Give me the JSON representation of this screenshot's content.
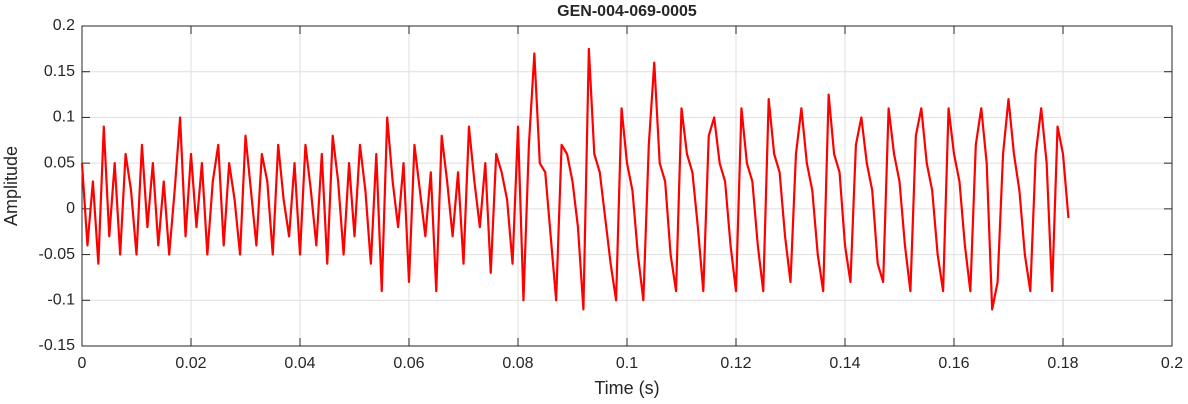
{
  "chart_data": {
    "type": "line",
    "title": "GEN-004-069-0005",
    "x_label": "Time (s)",
    "y_label": "Amplitude",
    "x": [
      0,
      0.001,
      0.002,
      0.003,
      0.004,
      0.005,
      0.006,
      0.007,
      0.008,
      0.009,
      0.01,
      0.011,
      0.012,
      0.013,
      0.014,
      0.015,
      0.016,
      0.017,
      0.018,
      0.019,
      0.02,
      0.021,
      0.022,
      0.023,
      0.024,
      0.025,
      0.026,
      0.027,
      0.028,
      0.029,
      0.03,
      0.031,
      0.032,
      0.033,
      0.034,
      0.035,
      0.036,
      0.037,
      0.038,
      0.039,
      0.04,
      0.041,
      0.042,
      0.043,
      0.044,
      0.045,
      0.046,
      0.047,
      0.048,
      0.049,
      0.05,
      0.051,
      0.052,
      0.053,
      0.054,
      0.055,
      0.056,
      0.057,
      0.058,
      0.059,
      0.06,
      0.061,
      0.062,
      0.063,
      0.064,
      0.065,
      0.066,
      0.067,
      0.068,
      0.069,
      0.07,
      0.071,
      0.072,
      0.073,
      0.074,
      0.075,
      0.076,
      0.077,
      0.078,
      0.079,
      0.08,
      0.081,
      0.082,
      0.083,
      0.084,
      0.085,
      0.086,
      0.087,
      0.088,
      0.089,
      0.09,
      0.091,
      0.092,
      0.093,
      0.094,
      0.095,
      0.096,
      0.097,
      0.098,
      0.099,
      0.1,
      0.101,
      0.102,
      0.103,
      0.104,
      0.105,
      0.106,
      0.107,
      0.108,
      0.109,
      0.11,
      0.111,
      0.112,
      0.113,
      0.114,
      0.115,
      0.116,
      0.117,
      0.118,
      0.119,
      0.12,
      0.121,
      0.122,
      0.123,
      0.124,
      0.125,
      0.126,
      0.127,
      0.128,
      0.129,
      0.13,
      0.131,
      0.132,
      0.133,
      0.134,
      0.135,
      0.136,
      0.137,
      0.138,
      0.139,
      0.14,
      0.141,
      0.142,
      0.143,
      0.144,
      0.145,
      0.146,
      0.147,
      0.148,
      0.149,
      0.15,
      0.151,
      0.152,
      0.153,
      0.154,
      0.155,
      0.156,
      0.157,
      0.158,
      0.159,
      0.16,
      0.161,
      0.162,
      0.163,
      0.164,
      0.165,
      0.166,
      0.167,
      0.168,
      0.169,
      0.17,
      0.171,
      0.172,
      0.173,
      0.174,
      0.175,
      0.176,
      0.177,
      0.178,
      0.179,
      0.18,
      0.181
    ],
    "series": [
      {
        "color": "#ff0000",
        "values": [
          0.05,
          -0.04,
          0.03,
          -0.06,
          0.09,
          -0.03,
          0.05,
          -0.05,
          0.06,
          0.02,
          -0.05,
          0.07,
          -0.02,
          0.05,
          -0.04,
          0.03,
          -0.05,
          0.02,
          0.1,
          -0.03,
          0.06,
          -0.02,
          0.05,
          -0.05,
          0.03,
          0.07,
          -0.04,
          0.05,
          0.01,
          -0.05,
          0.08,
          0.02,
          -0.04,
          0.06,
          0.03,
          -0.05,
          0.07,
          0.01,
          -0.03,
          0.05,
          -0.05,
          0.07,
          0.02,
          -0.04,
          0.06,
          -0.06,
          0.08,
          0.03,
          -0.05,
          0.05,
          -0.03,
          0.07,
          0.02,
          -0.06,
          0.06,
          -0.09,
          0.1,
          0.03,
          -0.02,
          0.05,
          -0.08,
          0.07,
          0.02,
          -0.03,
          0.04,
          -0.09,
          0.08,
          0.03,
          -0.03,
          0.04,
          -0.06,
          0.09,
          0.03,
          -0.02,
          0.05,
          -0.07,
          0.06,
          0.04,
          0.01,
          -0.06,
          0.09,
          -0.1,
          0.07,
          0.17,
          0.05,
          0.04,
          -0.03,
          -0.1,
          0.07,
          0.06,
          0.03,
          -0.02,
          -0.11,
          0.175,
          0.06,
          0.04,
          -0.01,
          -0.06,
          -0.1,
          0.11,
          0.05,
          0.02,
          -0.05,
          -0.1,
          0.07,
          0.16,
          0.05,
          0.03,
          -0.05,
          -0.09,
          0.11,
          0.06,
          0.04,
          -0.02,
          -0.09,
          0.08,
          0.1,
          0.05,
          0.03,
          -0.04,
          -0.09,
          0.11,
          0.05,
          0.03,
          -0.04,
          -0.09,
          0.12,
          0.06,
          0.04,
          -0.03,
          -0.08,
          0.06,
          0.11,
          0.05,
          0.02,
          -0.05,
          -0.09,
          0.125,
          0.06,
          0.04,
          -0.04,
          -0.08,
          0.07,
          0.1,
          0.05,
          0.02,
          -0.06,
          -0.08,
          0.11,
          0.06,
          0.03,
          -0.04,
          -0.09,
          0.08,
          0.11,
          0.05,
          0.02,
          -0.05,
          -0.09,
          0.11,
          0.06,
          0.03,
          -0.04,
          -0.09,
          0.07,
          0.11,
          0.05,
          -0.11,
          -0.08,
          0.06,
          0.12,
          0.06,
          0.02,
          -0.05,
          -0.09,
          0.06,
          0.11,
          0.05,
          -0.09,
          0.09,
          0.06,
          -0.01
        ]
      }
    ],
    "xlim": [
      0,
      0.2
    ],
    "xticks": [
      0,
      0.02,
      0.04,
      0.06,
      0.08,
      0.1,
      0.12,
      0.14,
      0.16,
      0.18,
      0.2
    ],
    "ylim": [
      -0.15,
      0.2
    ],
    "yticks": [
      -0.15,
      -0.1,
      -0.05,
      0,
      0.05,
      0.1,
      0.15,
      0.2
    ],
    "grid": true
  }
}
